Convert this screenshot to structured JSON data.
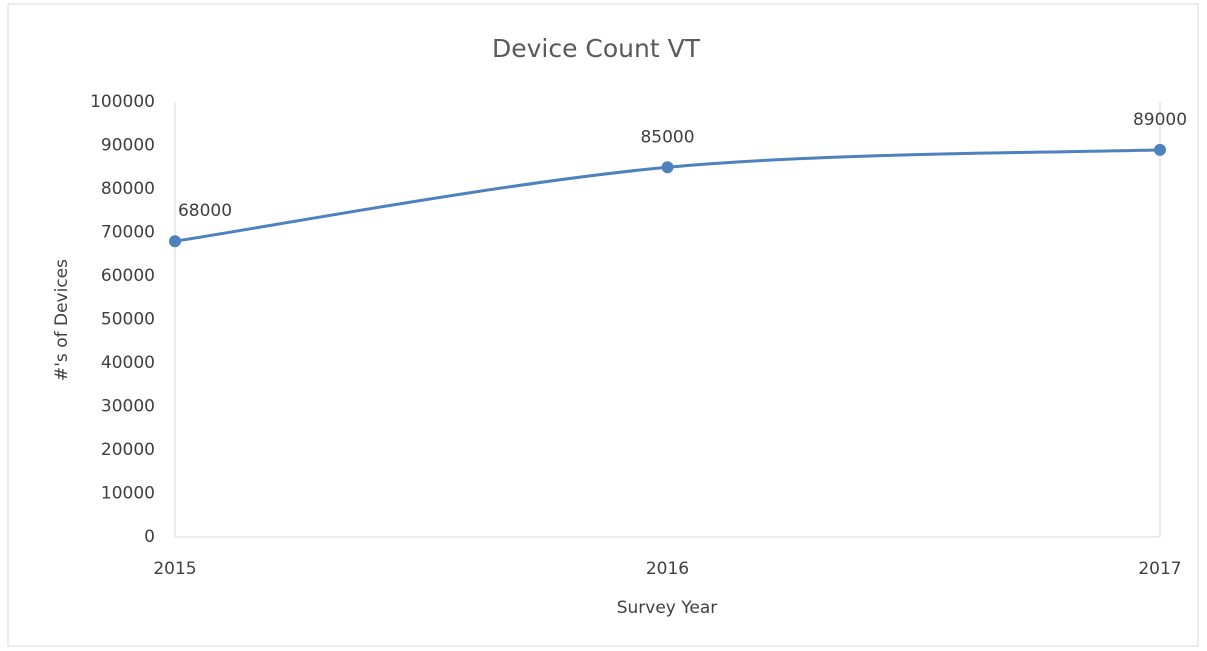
{
  "chart_data": {
    "type": "line",
    "title": "Device Count VT",
    "x_label": "Survey Year",
    "y_label": "#'s of Devices",
    "x": [
      2015,
      2016,
      2017
    ],
    "series": [
      {
        "name": "Device Count VT",
        "color": "#4f81bd",
        "values": [
          68000,
          85000,
          89000
        ]
      }
    ],
    "xlim": [
      2015,
      2017
    ],
    "xticks": [
      2015,
      2016,
      2017
    ],
    "ylim": [
      0,
      100000
    ],
    "yticks": [
      0,
      10000,
      20000,
      30000,
      40000,
      50000,
      60000,
      70000,
      80000,
      90000,
      100000
    ],
    "smooth": true,
    "data_labels": true,
    "legend": false,
    "grid": false
  }
}
